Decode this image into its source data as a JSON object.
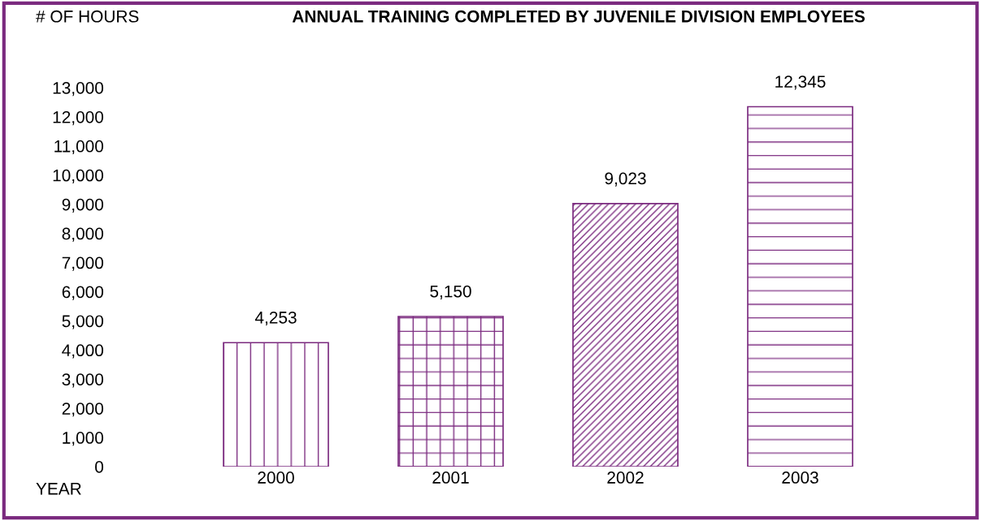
{
  "chart_data": {
    "type": "bar",
    "title": "ANNUAL TRAINING COMPLETED BY JUVENILE DIVISION EMPLOYEES",
    "ylabel": "# OF HOURS",
    "xlabel": "YEAR",
    "categories": [
      "2000",
      "2001",
      "2002",
      "2003"
    ],
    "values": [
      4253,
      5150,
      9023,
      12345
    ],
    "colors": [
      "#7b2a7f",
      "#7b2a7f",
      "#7b2a7f",
      "#7b2a7f"
    ],
    "ylim": [
      0,
      13000
    ],
    "yticks": [
      0,
      {
        "value": 1000,
        "label": "1,000"
      },
      {
        "value": 2000,
        "label": "2,000"
      },
      {
        "value": 3000,
        "label": "3,000"
      },
      {
        "value": 4000,
        "label": "4,000"
      },
      {
        "value": 5000,
        "label": "5,000"
      },
      {
        "value": 6000,
        "label": "6,000"
      },
      {
        "value": 7000,
        "label": "7,000"
      },
      {
        "value": 8000,
        "label": "8,000"
      },
      {
        "value": 9000,
        "label": "9,000"
      },
      {
        "value": 10000,
        "label": "10,000"
      },
      {
        "value": 11000,
        "label": "11,000"
      },
      {
        "value": 12000,
        "label": "12,000"
      },
      {
        "value": 13000,
        "label": "13,000"
      }
    ],
    "value_labels": [
      "4,253",
      "5,150",
      "9,023",
      "12,345"
    ],
    "grid": false,
    "legend": false
  }
}
